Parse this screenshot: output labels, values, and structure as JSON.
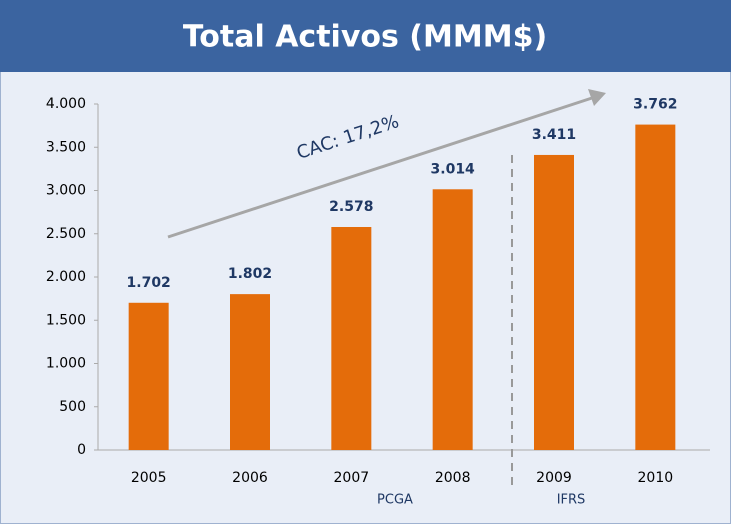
{
  "chart_data": {
    "type": "bar",
    "title": "Total Activos (MMM$)",
    "categories": [
      "2005",
      "2006",
      "2007",
      "2008",
      "2009",
      "2010"
    ],
    "values": [
      1702,
      1802,
      2578,
      3014,
      3411,
      3762
    ],
    "value_labels": [
      "1.702",
      "1.802",
      "2.578",
      "3.014",
      "3.411",
      "3.762"
    ],
    "color": "#e46c0a",
    "ylim": [
      0,
      4000
    ],
    "yticks": [
      0,
      500,
      {
        "value": 1000,
        "label": "1.000"
      },
      {
        "value": 1500,
        "label": "1.500"
      },
      {
        "value": 2000,
        "label": "2.000"
      },
      {
        "value": 2500,
        "label": "2.500"
      },
      {
        "value": 3000,
        "label": "3.000"
      },
      {
        "value": 3500,
        "label": "3.500"
      },
      {
        "value": 4000,
        "label": "4.000"
      }
    ],
    "grid": false,
    "annotations": [
      "CAC: 17,2%",
      "PCGA",
      "IFRS"
    ]
  }
}
